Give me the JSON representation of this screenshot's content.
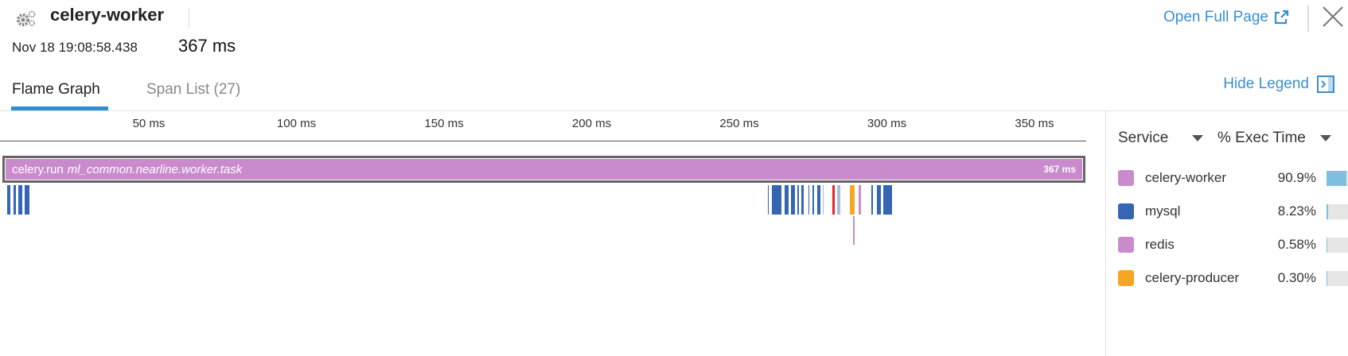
{
  "header": {
    "service": "celery-worker",
    "timestamp": "Nov 18 19:08:58.438",
    "duration": "367 ms",
    "open_full_page": "Open Full Page",
    "icons": [
      "gears-icon",
      "external-link-icon",
      "close-icon"
    ]
  },
  "tabs": [
    {
      "label": "Flame Graph",
      "active": true
    },
    {
      "label": "Span List (27)",
      "active": false
    }
  ],
  "hide_legend": "Hide Legend",
  "flame": {
    "axis_ticks": [
      "50 ms",
      "100 ms",
      "150 ms",
      "200 ms",
      "250 ms",
      "300 ms",
      "350 ms"
    ],
    "root": {
      "name": "celery.run",
      "resource": "ml_common.nearline.worker.task",
      "duration": "367 ms",
      "service": "celery-worker"
    },
    "spans": [
      {
        "start": 2.0,
        "end": 3.4,
        "depth": 1,
        "service": "mysql"
      },
      {
        "start": 4.2,
        "end": 5.3,
        "depth": 1,
        "service": "mysql"
      },
      {
        "start": 5.8,
        "end": 7.4,
        "depth": 1,
        "service": "mysql"
      },
      {
        "start": 7.9,
        "end": 9.8,
        "depth": 1,
        "service": "mysql"
      },
      {
        "start": 259.7,
        "end": 260.2,
        "depth": 1,
        "service": "mysql"
      },
      {
        "start": 261.0,
        "end": 264.6,
        "depth": 1,
        "service": "mysql"
      },
      {
        "start": 265.4,
        "end": 267.0,
        "depth": 1,
        "service": "mysql"
      },
      {
        "start": 267.5,
        "end": 269.1,
        "depth": 1,
        "service": "mysql"
      },
      {
        "start": 269.7,
        "end": 270.5,
        "depth": 1,
        "service": "mysql"
      },
      {
        "start": 271.0,
        "end": 272.1,
        "depth": 1,
        "service": "mysql"
      },
      {
        "start": 273.4,
        "end": 274.0,
        "depth": 1,
        "service": "mysql"
      },
      {
        "start": 274.8,
        "end": 275.6,
        "depth": 1,
        "service": "mysql"
      },
      {
        "start": 276.4,
        "end": 277.8,
        "depth": 1,
        "service": "mysql"
      },
      {
        "start": 278.3,
        "end": 278.8,
        "depth": 1,
        "service": "mysql-light"
      },
      {
        "start": 281.5,
        "end": 282.6,
        "depth": 1,
        "service": "error"
      },
      {
        "start": 283.1,
        "end": 284.5,
        "depth": 1,
        "service": "mysql-light"
      },
      {
        "start": 287.5,
        "end": 289.4,
        "depth": 1,
        "service": "celery-producer"
      },
      {
        "start": 290.4,
        "end": 291.5,
        "depth": 1,
        "service": "redis"
      },
      {
        "start": 294.7,
        "end": 295.5,
        "depth": 1,
        "service": "mysql"
      },
      {
        "start": 296.6,
        "end": 298.2,
        "depth": 1,
        "service": "mysql"
      },
      {
        "start": 298.8,
        "end": 302.0,
        "depth": 1,
        "service": "mysql"
      },
      {
        "start": 288.5,
        "end": 289.1,
        "depth": 2,
        "service": "redis"
      }
    ]
  },
  "colors": {
    "celery-worker": "#c98bcc",
    "mysql": "#3565b4",
    "mysql-light": "#a9bde0",
    "redis": "#c98bcc",
    "celery-producer": "#f5a623",
    "error": "#e8252b",
    "accent": "#3a8fcf",
    "bar": "#7cbfe0"
  },
  "legend": {
    "col_service": "Service",
    "col_exec": "% Exec Time",
    "rows": [
      {
        "service": "celery-worker",
        "pct": "90.9%",
        "value": 90.9
      },
      {
        "service": "mysql",
        "pct": "8.23%",
        "value": 8.23
      },
      {
        "service": "redis",
        "pct": "0.58%",
        "value": 0.58
      },
      {
        "service": "celery-producer",
        "pct": "0.30%",
        "value": 0.3
      }
    ]
  }
}
